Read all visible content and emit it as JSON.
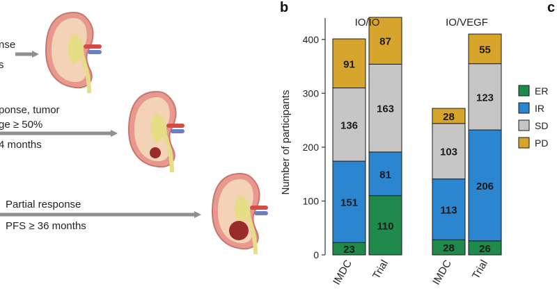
{
  "panel_b_letter": "b",
  "panel_c_letter": "c",
  "left_panel": {
    "row1": {
      "line1": "nse",
      "line2": "s"
    },
    "row2": {
      "line1": "ponse, tumor",
      "line2": "ge ≥ 50%",
      "line3": "4 months"
    },
    "row3": {
      "line1": "Partial response",
      "line2": "PFS ≥ 36 months"
    }
  },
  "colors": {
    "ER": "#1f8a4c",
    "IR": "#2b86cf",
    "SD": "#c6c6c6",
    "PD": "#d7a52b",
    "arrow": "#8f8f8f"
  },
  "chart_data": {
    "type": "bar",
    "stacked": true,
    "ylabel": "Number of participants",
    "ylim": [
      0,
      450
    ],
    "yticks": [
      0,
      100,
      200,
      300,
      400
    ],
    "groups": [
      {
        "name": "IO/IO",
        "categories": [
          "IMDC",
          "Trial"
        ]
      },
      {
        "name": "IO/VEGF",
        "categories": [
          "IMDC",
          "Trial"
        ]
      }
    ],
    "series": [
      {
        "name": "ER",
        "values": [
          23,
          110,
          28,
          26
        ]
      },
      {
        "name": "IR",
        "values": [
          151,
          81,
          113,
          206
        ]
      },
      {
        "name": "SD",
        "values": [
          136,
          163,
          103,
          123
        ]
      },
      {
        "name": "PD",
        "values": [
          91,
          87,
          28,
          55
        ]
      }
    ],
    "legend": [
      "ER",
      "IR",
      "SD",
      "PD"
    ]
  }
}
